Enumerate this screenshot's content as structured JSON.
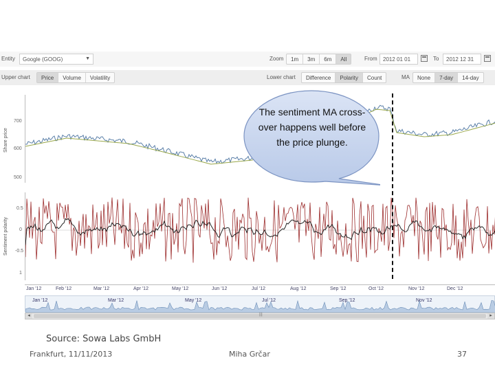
{
  "toolbar1": {
    "entity_label": "Entity",
    "entity_value": "Google (GOOG)",
    "zoom_label": "Zoom",
    "zoom_options": [
      "1m",
      "3m",
      "6m",
      "All"
    ],
    "zoom_active": "All",
    "from_label": "From",
    "from_value": "2012 01 01",
    "to_label": "To",
    "to_value": "2012 12 31"
  },
  "toolbar2": {
    "upper_label": "Upper chart",
    "upper_options": [
      "Price",
      "Volume",
      "Volatility"
    ],
    "upper_active": "Price",
    "lower_label": "Lower chart",
    "lower_options": [
      "Difference",
      "Polarity",
      "Count"
    ],
    "lower_active": "Polarity",
    "ma_label": "MA",
    "ma_options": [
      "None",
      "7-day",
      "14-day"
    ],
    "ma_active": "7-day"
  },
  "upper_chart": {
    "ytitle": "Share price",
    "yticks": [
      "700",
      "600",
      "500"
    ]
  },
  "lower_chart": {
    "ytitle": "Sentiment polarity",
    "yticks": [
      "0.5",
      "0",
      "-0.5",
      "1"
    ]
  },
  "xaxis_months": [
    "Jan '12",
    "Feb '12",
    "Mar '12",
    "Apr '12",
    "May '12",
    "Jun '12",
    "Jul '12",
    "Aug '12",
    "Sep '12",
    "Oct '12",
    "Nov '12",
    "Dec '12"
  ],
  "navigator_months": [
    "Jan '12",
    "Mar '12",
    "May '12",
    "Jul '12",
    "Sep '12",
    "Nov '12"
  ],
  "callout": "The sentiment MA cross-over happens well before the price plunge.",
  "source": "Source: Sowa Labs GmbH",
  "footer": {
    "left": "Frankfurt, 11/11/2013",
    "center": "Miha Grčar",
    "page": "37"
  },
  "colors": {
    "price_line": "#5a7fa8",
    "price_ma": "#9aa84a",
    "polarity_line": "#9b2a2a",
    "polarity_ma": "#222222",
    "bubble_fill": "#c9d6ee",
    "bubble_stroke": "#7b93c2"
  }
}
